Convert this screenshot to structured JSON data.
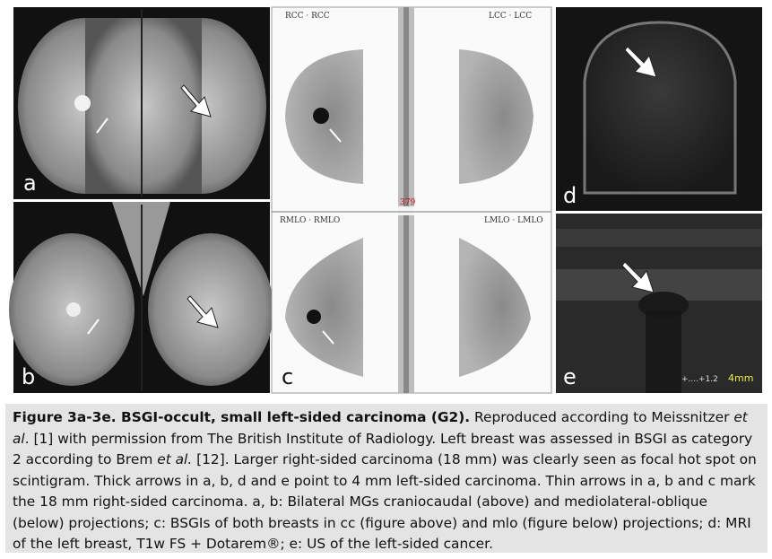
{
  "panels": {
    "a": "a",
    "b": "b",
    "c": "c",
    "d": "d",
    "e": "e"
  },
  "scinti_labels": {
    "rcc": "RCC · RCC",
    "lcc": "LCC · LCC",
    "rmlo": "RMLO · RMLO",
    "lmlo": "LMLO · LMLO",
    "counter": "379"
  },
  "us_scale": {
    "marker": "+....+1.2",
    "size": "4mm"
  },
  "caption": [
    "Figure 3a-3e. BSGI-occult, small left-sided carcinoma (G2).",
    " Reproduced according to Meissnitzer ",
    "et al",
    ". [1] with permission from The British Institute of Radiology. Left breast was assessed in BSGI as category 2 according to Brem ",
    "et al.",
    " [12]. Larger right-sided carcinoma (18 mm) was clearly seen as focal hot spot on scintigram. Thick arrows in a, b, d and e point to 4 mm left-sided carcinoma. Thin arrows in a, b and c mark the 18 mm right-sided carcinoma. a, b: Bilateral MGs craniocaudal (above) and mediolateral-oblique (below) projections; c: BSGIs of both breasts in cc (figure above) and mlo (figure below) projections; d: MRI of the left breast, T1w FS + Dotarem®; e: US of the left-sided cancer."
  ]
}
